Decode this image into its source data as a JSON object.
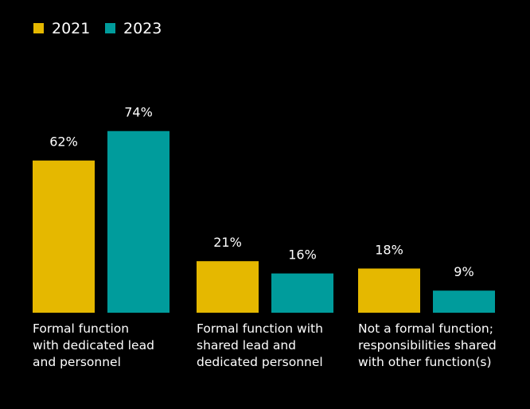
{
  "chart_data": {
    "type": "bar",
    "categories": [
      [
        "Formal function",
        "with dedicated lead",
        "and personnel"
      ],
      [
        "Formal function with",
        "shared lead and",
        "dedicated personnel"
      ],
      [
        "Not a formal function;",
        "responsibilities shared",
        "with other function(s)"
      ]
    ],
    "series": [
      {
        "name": "2021",
        "color": "#E5B800",
        "values": [
          62,
          21,
          18
        ],
        "labels": [
          "62%",
          "21%",
          "18%"
        ]
      },
      {
        "name": "2023",
        "color": "#009C9C",
        "values": [
          74,
          16,
          9
        ],
        "labels": [
          "74%",
          "16%",
          "9%"
        ]
      }
    ],
    "unit": "%",
    "ylim": [
      0,
      100
    ],
    "grid": false,
    "legend_position": "top-left"
  }
}
